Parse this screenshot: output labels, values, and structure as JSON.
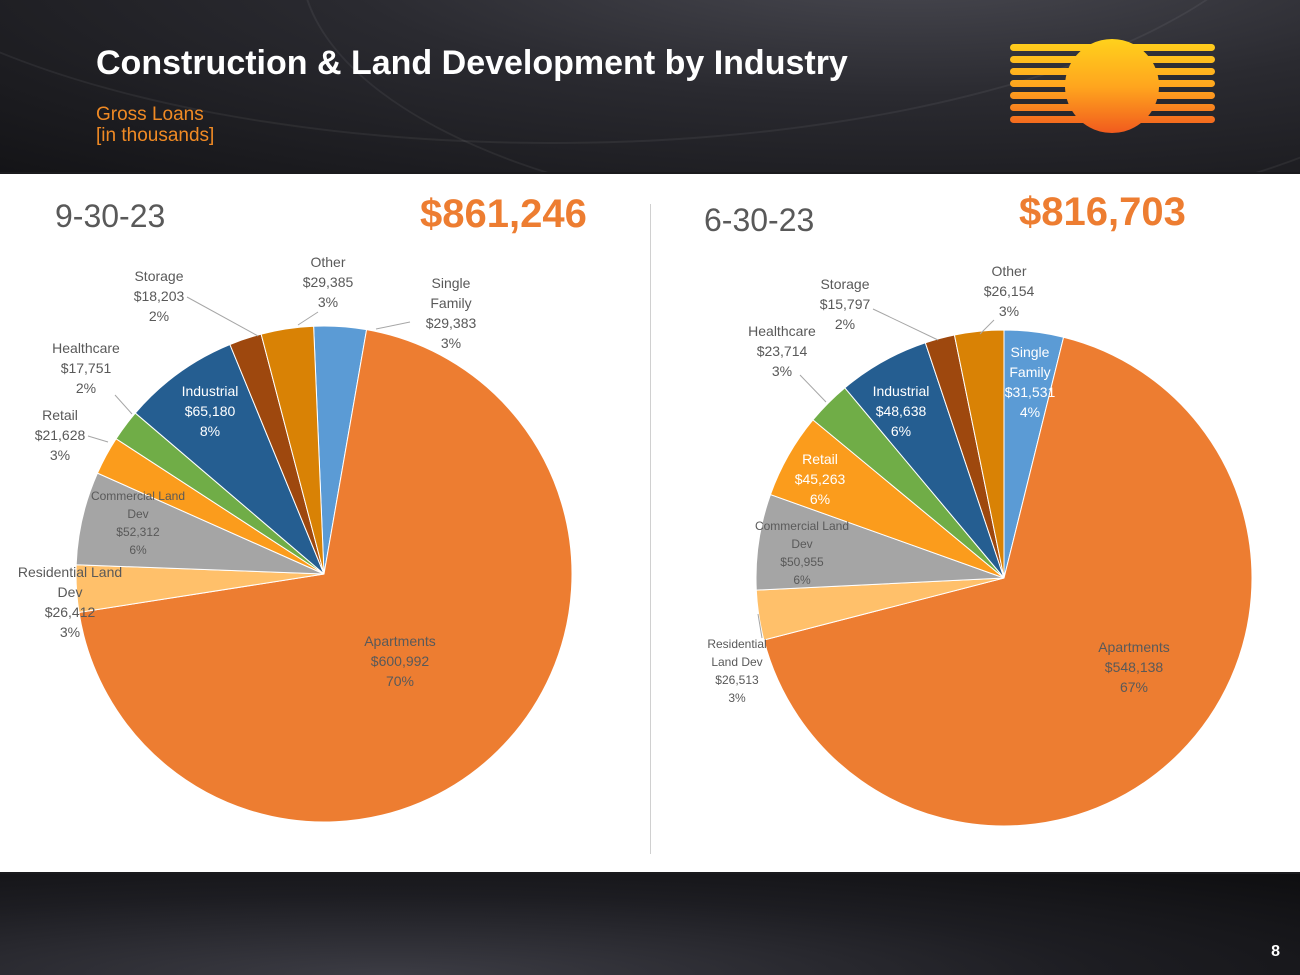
{
  "header": {
    "title": "Construction & Land Development by Industry",
    "subtitle_line1": "Gross Loans",
    "subtitle_line2": "[in thousands]"
  },
  "page_number": "8",
  "colors": {
    "orange_accent": "#ed7d31",
    "date_gray": "#595959",
    "subtitle_orange": "#f08a24"
  },
  "chart_data": [
    {
      "type": "pie",
      "date_label": "9-30-23",
      "total": "$861,246",
      "slices": [
        {
          "key": "single_family",
          "lines": [
            "Single",
            "Family"
          ],
          "amount": "$29,383",
          "value": 29383,
          "pct": "3%",
          "color": "#5b9bd5"
        },
        {
          "key": "apartments",
          "lines": [
            "Apartments"
          ],
          "amount": "$600,992",
          "value": 600992,
          "pct": "70%",
          "color": "#ed7d31"
        },
        {
          "key": "residential",
          "lines": [
            "Residential Land",
            "Dev"
          ],
          "amount": "$26,412",
          "value": 26412,
          "pct": "3%",
          "color": "#ffc06a"
        },
        {
          "key": "commercial",
          "lines": [
            "Commercial Land",
            "Dev"
          ],
          "amount": "$52,312",
          "value": 52312,
          "pct": "6%",
          "color": "#a5a5a5"
        },
        {
          "key": "retail",
          "lines": [
            "Retail"
          ],
          "amount": "$21,628",
          "value": 21628,
          "pct": "3%",
          "color": "#fb9c1c"
        },
        {
          "key": "healthcare",
          "lines": [
            "Healthcare"
          ],
          "amount": "$17,751",
          "value": 17751,
          "pct": "2%",
          "color": "#70ad47"
        },
        {
          "key": "industrial",
          "lines": [
            "Industrial"
          ],
          "amount": "$65,180",
          "value": 65180,
          "pct": "8%",
          "color": "#255e91"
        },
        {
          "key": "storage",
          "lines": [
            "Storage"
          ],
          "amount": "$18,203",
          "value": 18203,
          "pct": "2%",
          "color": "#9e480e"
        },
        {
          "key": "other",
          "lines": [
            "Other"
          ],
          "amount": "$29,385",
          "value": 29385,
          "pct": "3%",
          "color": "#d98205"
        }
      ]
    },
    {
      "type": "pie",
      "date_label": "6-30-23",
      "total": "$816,703",
      "slices": [
        {
          "key": "single_family",
          "lines": [
            "Single",
            "Family"
          ],
          "amount": "$31,531",
          "value": 31531,
          "pct": "4%",
          "color": "#5b9bd5"
        },
        {
          "key": "apartments",
          "lines": [
            "Apartments"
          ],
          "amount": "$548,138",
          "value": 548138,
          "pct": "67%",
          "color": "#ed7d31"
        },
        {
          "key": "residential",
          "lines": [
            "Residential",
            "Land Dev"
          ],
          "amount": "$26,513",
          "value": 26513,
          "pct": "3%",
          "color": "#ffc06a"
        },
        {
          "key": "commercial",
          "lines": [
            "Commercial Land",
            "Dev"
          ],
          "amount": "$50,955",
          "value": 50955,
          "pct": "6%",
          "color": "#a5a5a5"
        },
        {
          "key": "retail",
          "lines": [
            "Retail"
          ],
          "amount": "$45,263",
          "value": 45263,
          "pct": "6%",
          "color": "#fb9c1c"
        },
        {
          "key": "healthcare",
          "lines": [
            "Healthcare"
          ],
          "amount": "$23,714",
          "value": 23714,
          "pct": "3%",
          "color": "#70ad47"
        },
        {
          "key": "industrial",
          "lines": [
            "Industrial"
          ],
          "amount": "$48,638",
          "value": 48638,
          "pct": "6%",
          "color": "#255e91"
        },
        {
          "key": "storage",
          "lines": [
            "Storage"
          ],
          "amount": "$15,797",
          "value": 15797,
          "pct": "2%",
          "color": "#9e480e"
        },
        {
          "key": "other",
          "lines": [
            "Other"
          ],
          "amount": "$26,154",
          "value": 26154,
          "pct": "3%",
          "color": "#d98205"
        }
      ]
    }
  ]
}
